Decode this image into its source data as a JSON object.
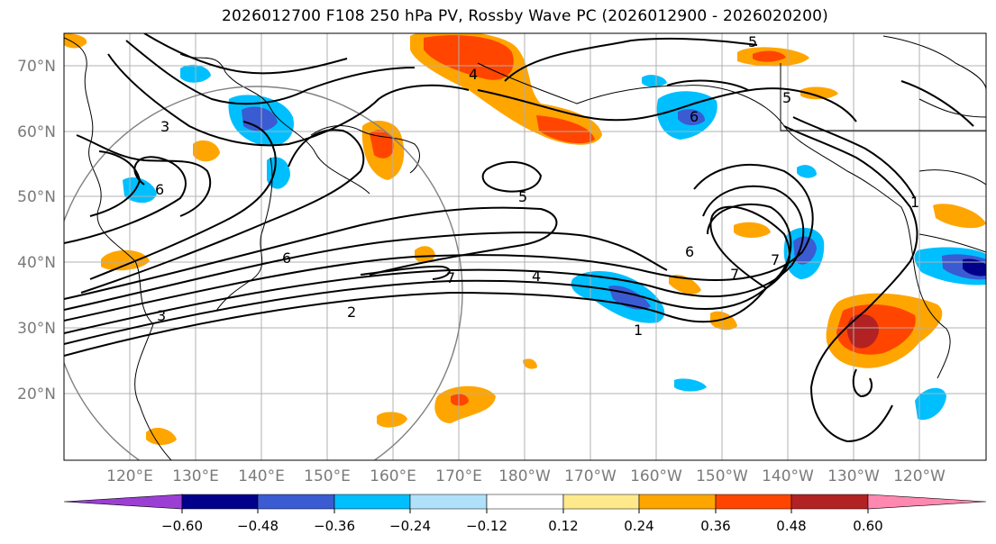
{
  "title": "2026012700 F108 250 hPa PV, Rossby Wave PC (2026012900 - 2026020200)",
  "axes": {
    "lat_labels": [
      "70°N",
      "60°N",
      "50°N",
      "40°N",
      "30°N",
      "20°N"
    ],
    "lon_labels": [
      "120°E",
      "130°E",
      "140°E",
      "150°E",
      "160°E",
      "170°E",
      "180°W",
      "170°W",
      "160°W",
      "150°W",
      "140°W",
      "130°W",
      "120°W"
    ]
  },
  "colorbar": {
    "tick_labels": [
      "−0.60",
      "−0.48",
      "−0.36",
      "−0.24",
      "−0.12",
      "0.12",
      "0.24",
      "0.36",
      "0.48",
      "0.60"
    ],
    "colors": [
      "#9b3fd4",
      "#00008b",
      "#3a5bd2",
      "#00bfff",
      "#b0e0fa",
      "#ffffff",
      "#ffe98a",
      "#ffa500",
      "#ff4500",
      "#b22222",
      "#ff88b0"
    ]
  },
  "contour_labels": [
    "3",
    "6",
    "4",
    "5",
    "6",
    "5",
    "3",
    "6",
    "7",
    "2",
    "7",
    "4",
    "6",
    "7",
    "1",
    "1",
    "5"
  ],
  "map_features": {
    "pv_contour_color": "#000000",
    "coastline_color": "#000000",
    "grid_color": "#b0b0b0",
    "range_circle_color": "#808080"
  }
}
